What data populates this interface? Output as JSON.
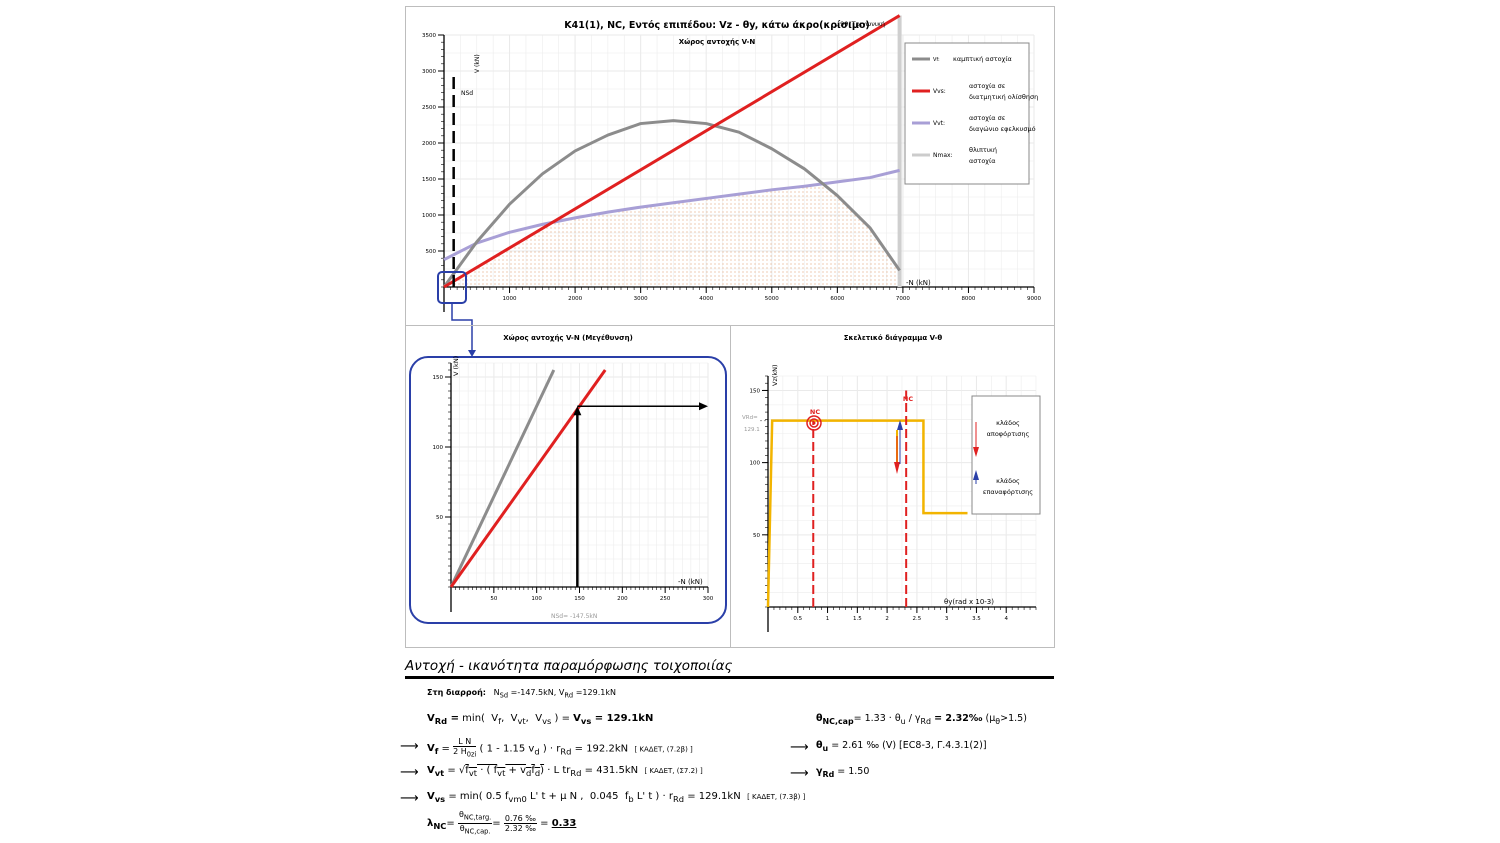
{
  "main_chart": {
    "title": "K41(1), NC, Εντός επιπέδου: Vz - θy, κάτω άκρο(κρίσιμο)",
    "title_note": ", 90°Τριγωνική",
    "subtitle": "Χώρος αντοχής V-N",
    "y_axis_label": "V (kN)",
    "x_axis_label": "-N (kN)",
    "nsd_label": "NSd",
    "legend": [
      {
        "key": "Vf:",
        "text1": "καμπτική αστοχία",
        "text2": "",
        "color": "#8c8c8c"
      },
      {
        "key": "Vvs:",
        "text1": "αστοχία σε",
        "text2": "διατμητική ολίσθηση",
        "color": "#e02020"
      },
      {
        "key": "Vvt:",
        "text1": "αστοχία σε",
        "text2": "διαγώνιο εφελκυσμό",
        "color": "#a89fd6"
      },
      {
        "key": "Nmax:",
        "text1": "θλιπτική",
        "text2": "αστοχία",
        "color": "#cccccc"
      }
    ]
  },
  "zoom_chart": {
    "title": "Χώρος αντοχής V-N (Μεγέθυνση)",
    "y_axis_label": "V (kN)",
    "x_axis_label": "-N (kN)",
    "nsd_label": "NSd= -147.5kN"
  },
  "skeleton_chart": {
    "title": "Σκελετικό διάγραμμα V-θ",
    "y_axis_label": "Vz(kN)",
    "x_axis_label": "θy(rad x 10-3)",
    "vrd_label": "VRd=",
    "vrd_value": "129.1",
    "nc_cap_label": "NC",
    "nc_label": "NC",
    "legend": [
      {
        "text1": "κλάδος",
        "text2": "αποφόρτισης"
      },
      {
        "text1": "κλάδος",
        "text2": "επαναφόρτισης"
      }
    ]
  },
  "chart_data": [
    {
      "type": "line",
      "title": "Χώρος αντοχής V-N",
      "xlabel": "-N (kN)",
      "ylabel": "V (kN)",
      "xlim": [
        0,
        9000
      ],
      "ylim": [
        0,
        3500
      ],
      "x_ticks": [
        1000,
        2000,
        3000,
        4000,
        5000,
        6000,
        7000,
        8000,
        9000
      ],
      "y_ticks": [
        500,
        1000,
        1500,
        2000,
        2500,
        3000,
        3500
      ],
      "series": [
        {
          "name": "Vf",
          "x": [
            0,
            500,
            1000,
            1500,
            2000,
            2500,
            3000,
            3500,
            4000,
            4500,
            5000,
            5500,
            6000,
            6500,
            6950
          ],
          "y": [
            0,
            627,
            1150,
            1570,
            1890,
            2110,
            2270,
            2310,
            2270,
            2150,
            1920,
            1640,
            1270,
            820,
            230
          ]
        },
        {
          "name": "Vvs",
          "x": [
            0,
            6950
          ],
          "y": [
            0,
            3770
          ]
        },
        {
          "name": "Vvt",
          "x": [
            0,
            500,
            1000,
            1500,
            2000,
            2500,
            3000,
            3500,
            4000,
            4500,
            5000,
            5500,
            6000,
            6500,
            6950
          ],
          "y": [
            380,
            610,
            760,
            870,
            960,
            1040,
            1110,
            1170,
            1230,
            1290,
            1350,
            1400,
            1460,
            1520,
            1620
          ]
        },
        {
          "name": "Nmax",
          "x": [
            6950,
            6950
          ],
          "y": [
            0,
            3770
          ]
        },
        {
          "name": "NSd",
          "x": [
            147.5,
            147.5
          ],
          "y": [
            0,
            2990
          ]
        }
      ]
    },
    {
      "type": "line",
      "title": "Χώρος αντοχής V-N (Μεγέθυνση)",
      "xlabel": "-N (kN)",
      "ylabel": "V (kN)",
      "xlim": [
        0,
        300
      ],
      "ylim": [
        0,
        160
      ],
      "x_ticks": [
        50,
        100,
        150,
        200,
        250,
        300
      ],
      "y_ticks": [
        50,
        100,
        150
      ],
      "series": [
        {
          "name": "Vf",
          "x": [
            0,
            120
          ],
          "y": [
            0,
            155
          ]
        },
        {
          "name": "Vvs",
          "x": [
            0,
            180
          ],
          "y": [
            0,
            155
          ]
        },
        {
          "name": "NSd",
          "x": [
            147.5,
            147.5
          ],
          "y": [
            0,
            129.1
          ]
        }
      ]
    },
    {
      "type": "line",
      "title": "Σκελετικό διάγραμμα V-θ",
      "xlabel": "θy(rad x 10-3)",
      "ylabel": "Vz(kN)",
      "xlim": [
        0,
        4.5
      ],
      "ylim": [
        0,
        160
      ],
      "x_ticks": [
        0.5,
        1,
        1.5,
        2,
        2.5,
        3,
        3.5,
        4
      ],
      "y_ticks": [
        50,
        100,
        150
      ],
      "series": [
        {
          "name": "skeleton",
          "x": [
            0.0,
            0.07,
            2.61,
            2.61,
            3.35
          ],
          "y": [
            0,
            129.1,
            129.1,
            65,
            65
          ]
        },
        {
          "name": "NC cap",
          "x": [
            0.76,
            0.76
          ],
          "y": [
            0,
            129.1
          ]
        },
        {
          "name": "NC",
          "x": [
            2.32,
            2.32
          ],
          "y": [
            0,
            150
          ]
        }
      ]
    }
  ],
  "section": {
    "title": "Αντοχή - ικανότητα παραμόρφωσης τοιχοποιίας",
    "yield_label": "Στη διαρροή:",
    "yield_values": "=-147.5kN, V",
    "yield_values2": "=129.1kN",
    "vrd_result": "= 129.1kN",
    "theta_cap_expr": "= 1.33 · θ",
    "theta_cap_expr2": "/ γ",
    "theta_cap_value": "= 2.32‰",
    "theta_cap_cond": "(μ",
    "theta_cap_cond2": ">1.5)",
    "vf_expr": "( 1 - 1.15  v",
    "vf_result": ") · r",
    "vf_value": "= 192.2kN",
    "vf_ref": "[ ΚΑΔΕΤ, (7.2β) ]",
    "theta_u": "= 2.61 ‰ (V) [EC8-3, Γ.4.3.1(2)]",
    "vvt_value": "= 431.5kN",
    "vvt_ref": "[ ΚΑΔΕΤ, (Σ7.2) ]",
    "gamma_rd": "= 1.50",
    "vvs_value": "= 129.1kN",
    "vvs_ref": "[ ΚΑΔΕΤ, (7.3β) ]",
    "lambda_num": "0.76 ‰",
    "lambda_den": "2.32 ‰",
    "lambda_value": "0.33"
  }
}
